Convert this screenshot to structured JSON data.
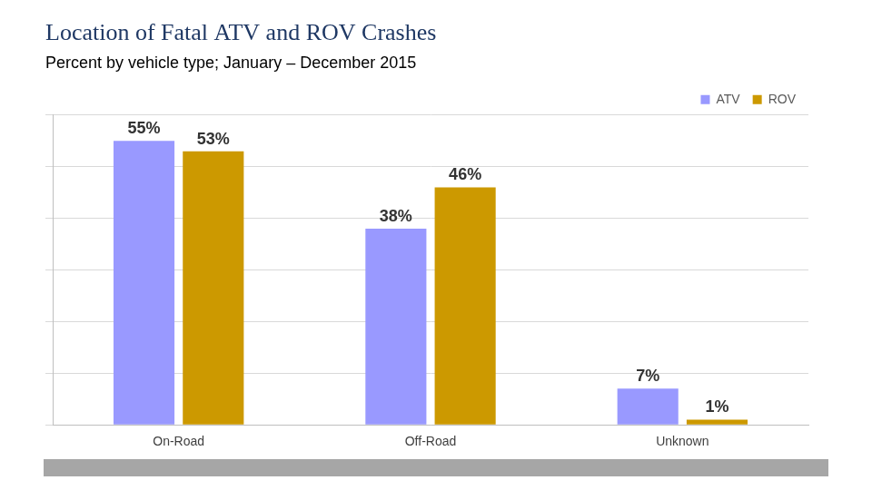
{
  "chart_data": {
    "type": "bar",
    "title": "Location of Fatal ATV and ROV Crashes",
    "subtitle": "Percent by vehicle type; January – December 2015",
    "categories": [
      "On-Road",
      "Off-Road",
      "Unknown"
    ],
    "series": [
      {
        "name": "ATV",
        "color": "#9999ff",
        "values": [
          55,
          38,
          7
        ],
        "value_labels": [
          "55%",
          "38%",
          "7%"
        ]
      },
      {
        "name": "ROV",
        "color": "#cc9900",
        "values": [
          53,
          46,
          1
        ],
        "value_labels": [
          "53%",
          "46%",
          "1%"
        ]
      }
    ],
    "ylim": [
      0,
      60
    ],
    "yticks": [
      0,
      10,
      20,
      30,
      40,
      50,
      60
    ],
    "grid": true,
    "legend": "upper right",
    "data_labels": true,
    "tick_labels": "x"
  }
}
